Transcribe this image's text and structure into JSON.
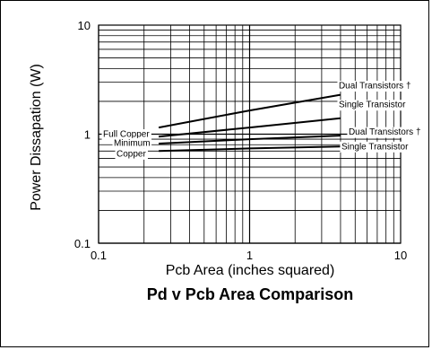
{
  "chart_data": {
    "type": "line",
    "title": "Pd v Pcb Area Comparison",
    "xlabel": "Pcb Area (inches squared)",
    "ylabel": "Power Dissapation (W)",
    "x_scale": "log",
    "y_scale": "log",
    "xlim": [
      0.1,
      10
    ],
    "ylim": [
      0.1,
      10
    ],
    "grid": true,
    "x_ticks": [
      {
        "value": 0.1,
        "label": "0.1"
      },
      {
        "value": 1,
        "label": "1"
      },
      {
        "value": 10,
        "label": "10"
      }
    ],
    "y_ticks": [
      {
        "value": 0.1,
        "label": "0.1"
      },
      {
        "value": 1,
        "label": "1"
      },
      {
        "value": 10,
        "label": "10"
      }
    ],
    "series": [
      {
        "name": "Dual Transistors †",
        "group": "Full Copper",
        "x": [
          0.25,
          1,
          4
        ],
        "y": [
          1.15,
          1.65,
          2.3
        ]
      },
      {
        "name": "Single Transistor",
        "group": "Full Copper",
        "x": [
          0.25,
          1,
          4
        ],
        "y": [
          0.95,
          1.15,
          1.4
        ]
      },
      {
        "name": "Dual Transistors †",
        "group": "Minimum Copper",
        "x": [
          0.25,
          1,
          4
        ],
        "y": [
          0.82,
          0.9,
          0.97
        ]
      },
      {
        "name": "Single Transistor",
        "group": "Minimum Copper",
        "x": [
          0.25,
          1,
          4
        ],
        "y": [
          0.7,
          0.74,
          0.77
        ]
      }
    ],
    "annotations": {
      "full_copper": "Full Copper",
      "minimum_line1": "Minimum",
      "minimum_line2": "Copper"
    }
  }
}
